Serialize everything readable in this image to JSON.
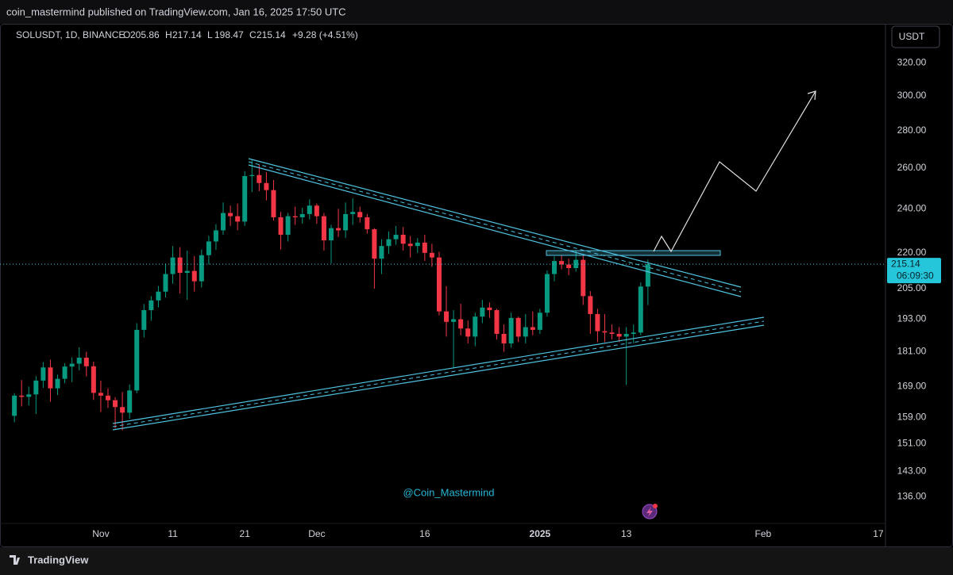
{
  "header": {
    "publisher": "coin_mastermind published on TradingView.com, Jan 16, 2025 17:50 UTC"
  },
  "chart_data": {
    "type": "candlestick",
    "symbol": "SOLUSDT, 1D, BINANCE",
    "ohlc_labels": [
      "O",
      "H",
      "L",
      "C"
    ],
    "change": "+9.28 (+4.51%)",
    "currency": "USDT",
    "countdown": "06:09:30",
    "watermark": "@Coin_Mastermind",
    "up_color": "#089981",
    "down_color": "#f23645",
    "log_scale": true,
    "grid": false,
    "x": [
      "2024-10-20",
      "2024-10-21",
      "2024-10-22",
      "2024-10-23",
      "2024-10-24",
      "2024-10-25",
      "2024-10-26",
      "2024-10-27",
      "2024-10-28",
      "2024-10-29",
      "2024-10-30",
      "2024-10-31",
      "2024-11-01",
      "2024-11-02",
      "2024-11-03",
      "2024-11-04",
      "2024-11-05",
      "2024-11-06",
      "2024-11-07",
      "2024-11-08",
      "2024-11-09",
      "2024-11-10",
      "2024-11-11",
      "2024-11-12",
      "2024-11-13",
      "2024-11-14",
      "2024-11-15",
      "2024-11-16",
      "2024-11-17",
      "2024-11-18",
      "2024-11-19",
      "2024-11-20",
      "2024-11-21",
      "2024-11-22",
      "2024-11-23",
      "2024-11-24",
      "2024-11-25",
      "2024-11-26",
      "2024-11-27",
      "2024-11-28",
      "2024-11-29",
      "2024-11-30",
      "2024-12-01",
      "2024-12-02",
      "2024-12-03",
      "2024-12-04",
      "2024-12-05",
      "2024-12-06",
      "2024-12-07",
      "2024-12-08",
      "2024-12-09",
      "2024-12-10",
      "2024-12-11",
      "2024-12-12",
      "2024-12-13",
      "2024-12-14",
      "2024-12-15",
      "2024-12-16",
      "2024-12-17",
      "2024-12-18",
      "2024-12-19",
      "2024-12-20",
      "2024-12-21",
      "2024-12-22",
      "2024-12-23",
      "2024-12-24",
      "2024-12-25",
      "2024-12-26",
      "2024-12-27",
      "2024-12-28",
      "2024-12-29",
      "2024-12-30",
      "2024-12-31",
      "2025-01-01",
      "2025-01-02",
      "2025-01-03",
      "2025-01-04",
      "2025-01-05",
      "2025-01-06",
      "2025-01-07",
      "2025-01-08",
      "2025-01-09",
      "2025-01-10",
      "2025-01-11",
      "2025-01-12",
      "2025-01-13",
      "2025-01-14",
      "2025-01-15",
      "2025-01-16"
    ],
    "open": [
      159.5,
      166.0,
      165.6,
      166.4,
      171.0,
      175.5,
      168.4,
      171.6,
      175.8,
      176.8,
      178.9,
      175.9,
      166.9,
      166.0,
      164.5,
      162.3,
      160.5,
      167.7,
      189.0,
      196.5,
      200.3,
      203.8,
      211.0,
      218.0,
      211.5,
      212.3,
      208.0,
      219.0,
      225.0,
      230.0,
      238.0,
      236.5,
      234.0,
      256.0,
      256.5,
      252.5,
      249.0,
      236.0,
      228.0,
      236.5,
      236.0,
      237.5,
      241.5,
      236.5,
      225.5,
      231.0,
      230.0,
      237.5,
      238.5,
      236.0,
      230.5,
      217.5,
      223.0,
      226.0,
      228.0,
      224.0,
      223.0,
      224.5,
      220.0,
      218.0,
      196.0,
      192.0,
      193.0,
      189.5,
      186.5,
      194.0,
      197.5,
      196.5,
      187.5,
      184.0,
      193.5,
      186.5,
      190.0,
      189.0,
      195.5,
      211.0,
      216.5,
      215.0,
      213.5,
      217.0,
      202.0,
      195.0,
      188.5,
      188.0,
      187.5,
      186.5,
      187.5,
      188.0,
      205.86
    ],
    "high": [
      166.8,
      171.2,
      169.0,
      172.5,
      177.4,
      178.2,
      173.0,
      177.0,
      179.0,
      182.6,
      181.0,
      177.5,
      171.0,
      168.4,
      165.5,
      167.2,
      169.7,
      191.5,
      198.9,
      202.0,
      206.1,
      215.4,
      223.0,
      222.5,
      221.0,
      218.6,
      221.5,
      227.5,
      232.8,
      243.0,
      241.5,
      242.5,
      258.5,
      264.5,
      262.0,
      258.0,
      254.0,
      238.5,
      238.0,
      241.0,
      240.5,
      244.5,
      242.5,
      238.0,
      232.5,
      240.0,
      243.0,
      245.0,
      241.0,
      237.5,
      231.0,
      226.0,
      229.5,
      232.0,
      231.5,
      227.5,
      226.5,
      228.0,
      224.0,
      220.5,
      206.0,
      196.5,
      199.0,
      192.5,
      195.5,
      200.5,
      199.5,
      197.0,
      191.0,
      195.5,
      194.0,
      195.0,
      196.0,
      197.0,
      212.5,
      218.5,
      219.0,
      217.5,
      221.0,
      219.0,
      204.0,
      197.0,
      195.0,
      191.0,
      190.0,
      190.0,
      191.0,
      207.5,
      217.14
    ],
    "low": [
      157.5,
      162.5,
      162.8,
      160.1,
      168.6,
      164.0,
      166.2,
      170.1,
      170.5,
      174.5,
      172.4,
      164.6,
      160.7,
      162.0,
      155.6,
      155.0,
      158.6,
      166.8,
      186.2,
      192.4,
      197.6,
      201.5,
      207.0,
      203.0,
      200.5,
      203.8,
      205.5,
      215.0,
      221.3,
      228.0,
      232.0,
      230.0,
      232.0,
      248.0,
      248.5,
      244.0,
      234.5,
      221.5,
      225.0,
      232.5,
      233.0,
      235.0,
      233.0,
      221.0,
      215.5,
      227.0,
      226.5,
      232.5,
      233.5,
      228.5,
      205.0,
      211.0,
      219.5,
      223.5,
      221.0,
      218.0,
      220.0,
      216.5,
      214.0,
      194.5,
      186.5,
      175.5,
      187.0,
      184.0,
      183.0,
      191.5,
      193.5,
      185.5,
      181.0,
      182.5,
      184.5,
      184.0,
      187.0,
      187.5,
      194.0,
      208.0,
      213.0,
      210.5,
      212.0,
      198.5,
      187.5,
      184.5,
      184.5,
      185.5,
      184.5,
      169.5,
      184.0,
      187.0,
      198.47
    ],
    "close": [
      166.0,
      165.6,
      166.4,
      171.0,
      175.5,
      168.4,
      171.6,
      175.8,
      176.8,
      178.9,
      175.9,
      166.9,
      166.0,
      164.5,
      162.3,
      160.5,
      167.7,
      189.0,
      196.5,
      200.3,
      203.8,
      211.0,
      218.0,
      211.5,
      212.3,
      208.0,
      219.0,
      225.0,
      230.0,
      238.0,
      236.5,
      234.0,
      256.0,
      256.5,
      252.5,
      249.0,
      236.0,
      228.0,
      236.5,
      236.0,
      237.5,
      241.5,
      236.5,
      225.5,
      231.0,
      230.0,
      237.5,
      238.5,
      236.0,
      230.5,
      217.5,
      223.0,
      226.0,
      228.0,
      224.0,
      223.0,
      224.5,
      220.0,
      218.0,
      196.0,
      192.0,
      193.0,
      189.5,
      186.5,
      194.0,
      197.5,
      196.5,
      187.5,
      184.0,
      193.5,
      186.5,
      190.0,
      189.0,
      195.5,
      211.0,
      216.5,
      215.0,
      213.5,
      217.0,
      202.0,
      195.0,
      188.5,
      188.0,
      187.5,
      186.5,
      187.5,
      188.0,
      205.86,
      215.14
    ],
    "ylim": [
      129,
      343
    ],
    "yticks": [
      {
        "value": 136,
        "label": "136.00"
      },
      {
        "value": 143,
        "label": "143.00"
      },
      {
        "value": 151,
        "label": "151.00"
      },
      {
        "value": 159,
        "label": "159.00"
      },
      {
        "value": 169,
        "label": "169.00"
      },
      {
        "value": 181,
        "label": "181.00"
      },
      {
        "value": 193,
        "label": "193.00"
      },
      {
        "value": 205,
        "label": "205.00"
      },
      {
        "value": 220,
        "label": "220.00"
      },
      {
        "value": 240,
        "label": "240.00"
      },
      {
        "value": 260,
        "label": "260.00"
      },
      {
        "value": 280,
        "label": "280.00"
      },
      {
        "value": 300,
        "label": "300.00"
      },
      {
        "value": 320,
        "label": "320.00"
      }
    ],
    "xlim": [
      "2024-10-18",
      "2025-02-18"
    ],
    "xticks": [
      {
        "value": "2024-11-01",
        "label": "Nov"
      },
      {
        "value": "2024-11-11",
        "label": "11"
      },
      {
        "value": "2024-11-21",
        "label": "21"
      },
      {
        "value": "2024-12-01",
        "label": "Dec"
      },
      {
        "value": "2024-12-16",
        "label": "16"
      },
      {
        "value": "2025-01-01",
        "label": "2025"
      },
      {
        "value": "2025-01-13",
        "label": "13"
      },
      {
        "value": "2025-02-01",
        "label": "Feb"
      },
      {
        "value": "2025-02-17",
        "label": "17"
      }
    ]
  },
  "footer": {
    "brand": "TradingView"
  }
}
